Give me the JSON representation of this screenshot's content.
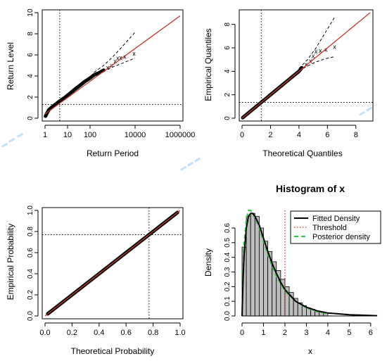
{
  "chart_data": [
    {
      "type": "line",
      "xscale": "log",
      "xlabel": "Return Period",
      "ylabel": "Return Level",
      "xlim": [
        1,
        1000000
      ],
      "ylim": [
        0,
        10
      ],
      "xticks": [
        1,
        10,
        100,
        10000,
        1000000
      ],
      "xtick_labels": [
        "1",
        "10",
        "100",
        "10000",
        "1000000"
      ],
      "yticks": [
        0,
        2,
        4,
        6,
        8,
        10
      ],
      "ref_lines": {
        "v": 4.5,
        "h": 1.3
      },
      "fit_line": [
        [
          1,
          0.4
        ],
        [
          1000000,
          9.7
        ]
      ],
      "ci_upper": [
        [
          150,
          4.35
        ],
        [
          400,
          5.0
        ],
        [
          1000,
          5.8
        ],
        [
          3000,
          6.9
        ],
        [
          10000,
          8.15
        ]
      ],
      "ci_lower": [
        [
          150,
          4.05
        ],
        [
          400,
          4.45
        ],
        [
          1000,
          4.85
        ],
        [
          3000,
          5.25
        ],
        [
          10000,
          5.7
        ]
      ],
      "points": [
        [
          1.05,
          0.2
        ],
        [
          1.2,
          0.45
        ],
        [
          1.5,
          0.8
        ],
        [
          2,
          1.05
        ],
        [
          3,
          1.35
        ],
        [
          5,
          1.7
        ],
        [
          8,
          2.0
        ],
        [
          12,
          2.3
        ],
        [
          20,
          2.7
        ],
        [
          35,
          3.1
        ],
        [
          60,
          3.5
        ],
        [
          100,
          3.8
        ],
        [
          150,
          4.1
        ],
        [
          250,
          4.3
        ],
        [
          400,
          4.55
        ],
        [
          600,
          4.8
        ],
        [
          900,
          5.0
        ],
        [
          1300,
          5.4
        ],
        [
          1700,
          5.7
        ],
        [
          2300,
          5.75
        ],
        [
          3500,
          5.85
        ],
        [
          9000,
          6.15
        ]
      ]
    },
    {
      "type": "scatter",
      "xlabel": "Theoretical Quantiles",
      "ylabel": "Empirical Quantiles",
      "xlim": [
        0,
        9
      ],
      "ylim": [
        0,
        9
      ],
      "xticks": [
        0,
        2,
        4,
        6,
        8
      ],
      "yticks": [
        0,
        2,
        4,
        6,
        8
      ],
      "ref_lines": {
        "v": 1.35,
        "h": 1.35
      },
      "fit_line": [
        [
          0,
          0
        ],
        [
          9,
          9
        ]
      ],
      "ci_upper": [
        [
          4.0,
          4.25
        ],
        [
          4.6,
          5.0
        ],
        [
          5.2,
          6.0
        ],
        [
          5.8,
          7.2
        ],
        [
          6.5,
          8.6
        ]
      ],
      "ci_lower": [
        [
          4.0,
          4.05
        ],
        [
          4.6,
          4.45
        ],
        [
          5.2,
          4.8
        ],
        [
          5.8,
          5.05
        ],
        [
          6.5,
          5.25
        ]
      ],
      "points": [
        [
          0.05,
          0.05
        ],
        [
          0.3,
          0.3
        ],
        [
          0.6,
          0.6
        ],
        [
          1.0,
          1.0
        ],
        [
          1.4,
          1.4
        ],
        [
          1.8,
          1.8
        ],
        [
          2.3,
          2.3
        ],
        [
          2.8,
          2.8
        ],
        [
          3.3,
          3.3
        ],
        [
          3.7,
          3.7
        ],
        [
          4.0,
          4.0
        ],
        [
          4.2,
          4.3
        ],
        [
          4.5,
          4.6
        ],
        [
          4.8,
          4.9
        ],
        [
          5.0,
          5.3
        ],
        [
          5.2,
          5.7
        ],
        [
          5.5,
          5.75
        ],
        [
          5.9,
          5.85
        ],
        [
          6.5,
          6.1
        ]
      ]
    },
    {
      "type": "scatter",
      "xlabel": "Theoretical Probability",
      "ylabel": "Empirical Probability",
      "xlim": [
        0,
        1
      ],
      "ylim": [
        0,
        1
      ],
      "xticks": [
        0.0,
        0.2,
        0.4,
        0.6,
        0.8,
        1.0
      ],
      "xtick_labels": [
        "0.0",
        "0.2",
        "0.4",
        "0.6",
        "0.8",
        "1.0"
      ],
      "yticks": [
        0.0,
        0.2,
        0.4,
        0.6,
        0.8,
        1.0
      ],
      "ytick_labels": [
        "0.0",
        "0.2",
        "0.4",
        "0.6",
        "0.8",
        "1.0"
      ],
      "ref_lines": {
        "v": 0.77,
        "h": 0.77
      },
      "fit_line": [
        [
          0,
          0
        ],
        [
          1,
          1
        ]
      ],
      "points": [
        [
          0.02,
          0.02
        ],
        [
          0.1,
          0.1
        ],
        [
          0.2,
          0.2
        ],
        [
          0.3,
          0.3
        ],
        [
          0.4,
          0.4
        ],
        [
          0.5,
          0.5
        ],
        [
          0.6,
          0.6
        ],
        [
          0.7,
          0.7
        ],
        [
          0.8,
          0.8
        ],
        [
          0.9,
          0.9
        ],
        [
          0.98,
          0.98
        ]
      ]
    },
    {
      "type": "bar",
      "title": "Histogram of x",
      "xlabel": "x",
      "ylabel": "Density",
      "xlim": [
        0,
        6.3
      ],
      "ylim": [
        0,
        0.72
      ],
      "xticks": [
        0,
        1,
        2,
        3,
        4,
        5,
        6
      ],
      "yticks": [
        0.0,
        0.1,
        0.2,
        0.3,
        0.4,
        0.5,
        0.6
      ],
      "ytick_labels": [
        "0.0",
        "0.1",
        "0.2",
        "0.3",
        "0.4",
        "0.5",
        "0.6"
      ],
      "bin_width": 0.2,
      "bin_start": 0,
      "values": [
        0.47,
        0.68,
        0.7,
        0.68,
        0.6,
        0.51,
        0.44,
        0.37,
        0.31,
        0.25,
        0.2,
        0.16,
        0.12,
        0.09,
        0.07,
        0.055,
        0.045,
        0.035,
        0.028,
        0.02
      ],
      "threshold": 2.0,
      "legend": [
        "Fitted Density",
        "Threshold",
        "Posterior density"
      ],
      "legend_position": "top-right",
      "fitted_density": [
        [
          0,
          0
        ],
        [
          0.05,
          0.25
        ],
        [
          0.1,
          0.42
        ],
        [
          0.2,
          0.6
        ],
        [
          0.3,
          0.68
        ],
        [
          0.4,
          0.7
        ],
        [
          0.5,
          0.7
        ],
        [
          0.6,
          0.68
        ],
        [
          0.8,
          0.62
        ],
        [
          1.0,
          0.53
        ],
        [
          1.2,
          0.44
        ],
        [
          1.4,
          0.36
        ],
        [
          1.6,
          0.29
        ],
        [
          1.8,
          0.23
        ],
        [
          2.0,
          0.18
        ],
        [
          2.5,
          0.1
        ],
        [
          3.0,
          0.06
        ],
        [
          3.5,
          0.035
        ],
        [
          4.0,
          0.02
        ],
        [
          5.0,
          0.008
        ],
        [
          6.3,
          0.002
        ]
      ],
      "posterior_density": [
        [
          0,
          0
        ],
        [
          0.05,
          0.3
        ],
        [
          0.1,
          0.5
        ],
        [
          0.2,
          0.66
        ],
        [
          0.3,
          0.72
        ],
        [
          0.4,
          0.72
        ],
        [
          0.5,
          0.7
        ],
        [
          0.6,
          0.67
        ],
        [
          0.8,
          0.6
        ],
        [
          1.0,
          0.51
        ],
        [
          1.2,
          0.42
        ],
        [
          1.4,
          0.34
        ],
        [
          1.6,
          0.27
        ],
        [
          1.8,
          0.22
        ],
        [
          2.0,
          0.17
        ],
        [
          2.5,
          0.1
        ],
        [
          3.0,
          0.055
        ],
        [
          3.5,
          0.03
        ],
        [
          4.0,
          0.015
        ]
      ]
    }
  ]
}
